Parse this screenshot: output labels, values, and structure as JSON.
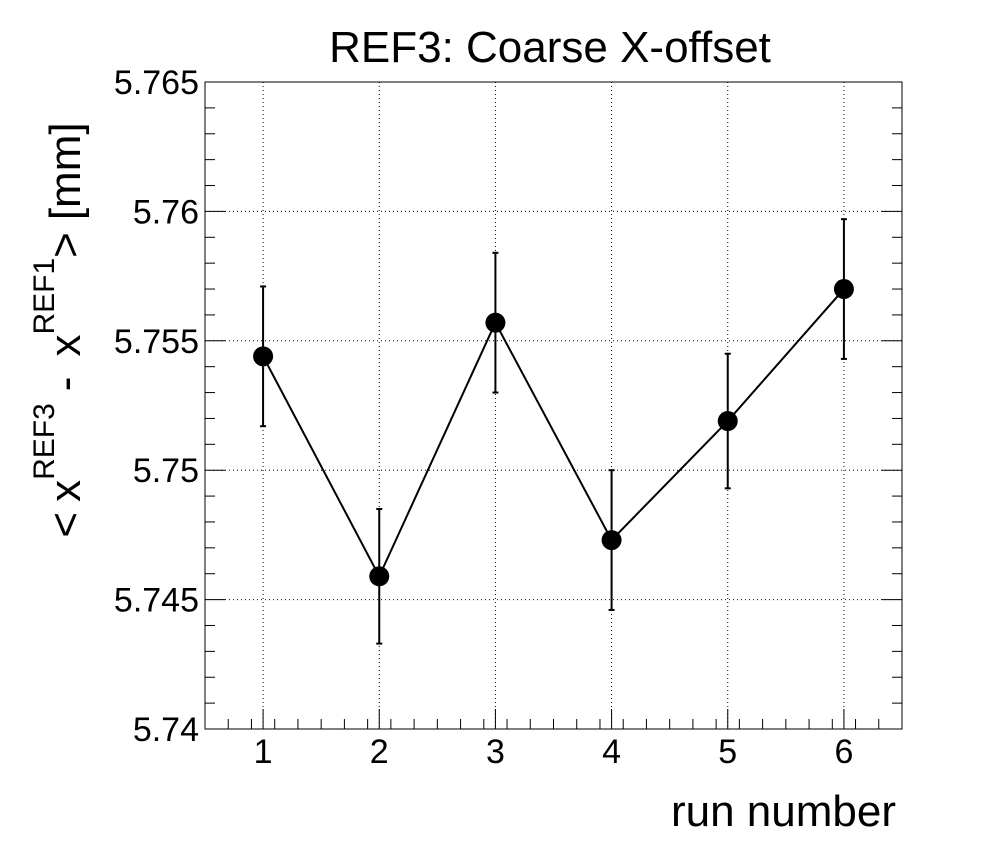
{
  "chart_data": {
    "type": "scatter",
    "title": "REF3: Coarse X-offset",
    "xlabel": "run number",
    "ylabel": {
      "lt": "<",
      "x1": "x",
      "sup1": "REF3",
      "minus": "-",
      "x2": "x",
      "sup2": "REF1",
      "gt": ">",
      "unit": "[mm]"
    },
    "xlim": [
      0.5,
      6.5
    ],
    "ylim": [
      5.74,
      5.765
    ],
    "x_ticks": [
      "1",
      "2",
      "3",
      "4",
      "5",
      "6"
    ],
    "y_ticks": [
      "5.74",
      "5.745",
      "5.75",
      "5.755",
      "5.76",
      "5.765"
    ],
    "grid": true,
    "connected": true,
    "points": [
      {
        "x": 1,
        "y": 5.7544,
        "err": 0.0027
      },
      {
        "x": 2,
        "y": 5.7459,
        "err": 0.0026
      },
      {
        "x": 3,
        "y": 5.7557,
        "err": 0.0027
      },
      {
        "x": 4,
        "y": 5.7473,
        "err": 0.0027
      },
      {
        "x": 5,
        "y": 5.7519,
        "err": 0.0026
      },
      {
        "x": 6,
        "y": 5.757,
        "err": 0.0027
      }
    ],
    "marker_color": "#000000",
    "line_color": "#000000",
    "grid_color": "#000000"
  }
}
